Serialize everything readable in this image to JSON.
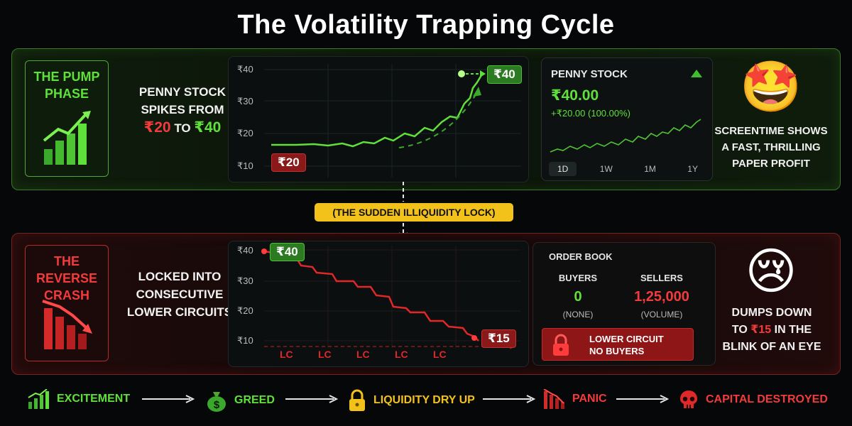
{
  "title": "The Volatility Trapping Cycle",
  "pump": {
    "phase_line1": "THE PUMP",
    "phase_line2": "PHASE",
    "desc_line1": "PENNY STOCK",
    "desc_line2": "SPIKES FROM",
    "desc_from": "₹20",
    "desc_to_word": "TO",
    "desc_to": "₹40",
    "chart": {
      "y_ticks": [
        "₹40",
        "₹30",
        "₹20",
        "₹10"
      ],
      "start_label": "₹20",
      "end_label": "₹40"
    },
    "stock_card": {
      "name": "PENNY STOCK",
      "price": "₹40.00",
      "change": "+₹20.00 (100.00%)",
      "timeframes": [
        "1D",
        "1W",
        "1M",
        "1Y"
      ],
      "active_timeframe": "1D"
    },
    "emoji": "🤩",
    "side_line1": "SCREENTIME SHOWS",
    "side_line2": "A FAST, THRILLING",
    "side_line3": "PAPER PROFIT"
  },
  "connector_label": "(THE SUDDEN ILLIQUIDITY LOCK)",
  "crash": {
    "phase_line1": "THE REVERSE",
    "phase_line2": "CRASH",
    "desc_line1": "LOCKED INTO",
    "desc_line2": "CONSECUTIVE",
    "desc_line3": "LOWER CIRCUITS",
    "chart": {
      "y_ticks": [
        "₹40",
        "₹30",
        "₹20",
        "₹10"
      ],
      "start_label": "₹40",
      "end_label": "₹15",
      "lc_labels": [
        "LC",
        "LC",
        "LC",
        "LC",
        "LC"
      ]
    },
    "order_book": {
      "title": "ORDER BOOK",
      "buyers_label": "BUYERS",
      "buyers_value": "0",
      "buyers_sub": "(NONE)",
      "sellers_label": "SELLERS",
      "sellers_value": "1,25,000",
      "sellers_sub": "(VOLUME)",
      "banner_line1": "LOWER CIRCUIT",
      "banner_line2": "NO BUYERS"
    },
    "emoji": "😢",
    "side_line1": "DUMPS DOWN",
    "side_prefix": "TO",
    "side_value": "₹15",
    "side_suffix": "IN THE",
    "side_line3": "BLINK OF AN EYE"
  },
  "flow": {
    "steps": [
      "EXCITEMENT",
      "GREED",
      "LIQUIDITY DRY UP",
      "PANIC",
      "CAPITAL DESTROYED"
    ],
    "colors": [
      "#5fe03a",
      "#5fe03a",
      "#f2c21a",
      "#f23b3b",
      "#f23b3b"
    ]
  },
  "colors": {
    "green": "#5fe03a",
    "red": "#f23b3b",
    "yellow": "#f2c21a"
  }
}
